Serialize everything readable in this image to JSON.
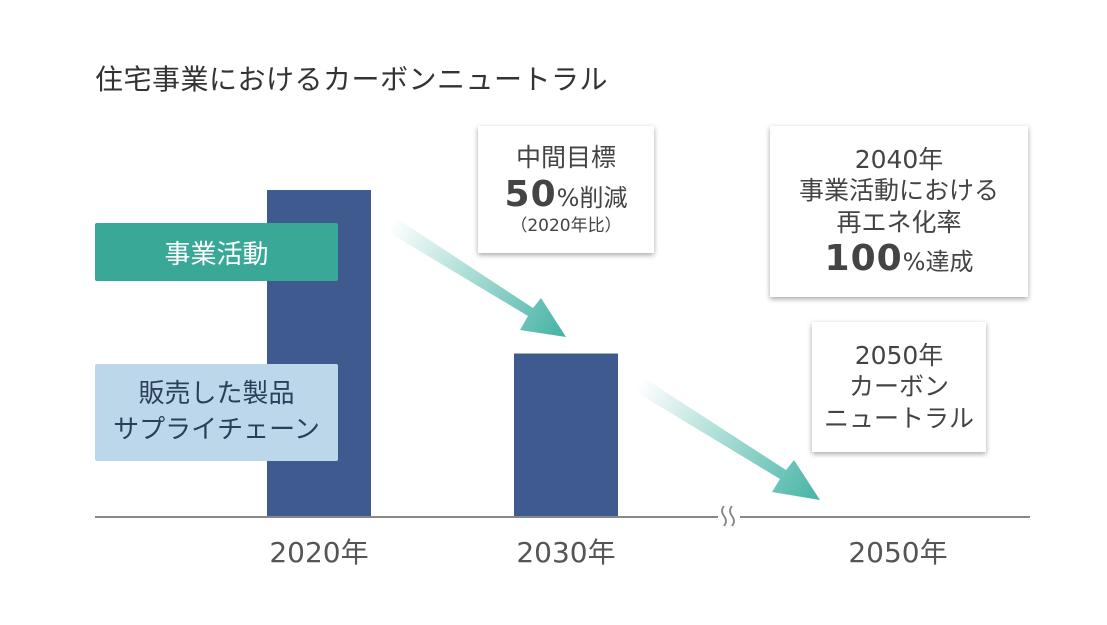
{
  "title": "住宅事業におけるカーボンニュートラル",
  "chart_data": {
    "type": "bar",
    "categories": [
      "2020年",
      "2030年",
      "2050年"
    ],
    "values": [
      100,
      50,
      0
    ],
    "value_unit": "% of 2020 emissions",
    "axis_break": "between 2030年 and 2050年",
    "colors": {
      "bar": "#3e5a8e",
      "arrow": "#45b3a5",
      "axis": "#888888"
    },
    "legend_labels": {
      "business": "事業活動",
      "supply_chain": [
        "販売した製品",
        "サプライチェーン"
      ]
    },
    "legend_colors": {
      "business": "#3aa897",
      "supply_chain": "#bdd7ea"
    },
    "annotations": {
      "midterm": {
        "line1": "中間目標",
        "big": "50",
        "unit": "%削減",
        "note": "（2020年比）"
      },
      "renewable": {
        "line1": "2040年",
        "line2": "事業活動における",
        "line3": "再エネ化率",
        "big": "100",
        "unit": "%達成"
      },
      "neutral": {
        "line1": "2050年",
        "line2": "カーボン",
        "line3": "ニュートラル"
      }
    }
  }
}
